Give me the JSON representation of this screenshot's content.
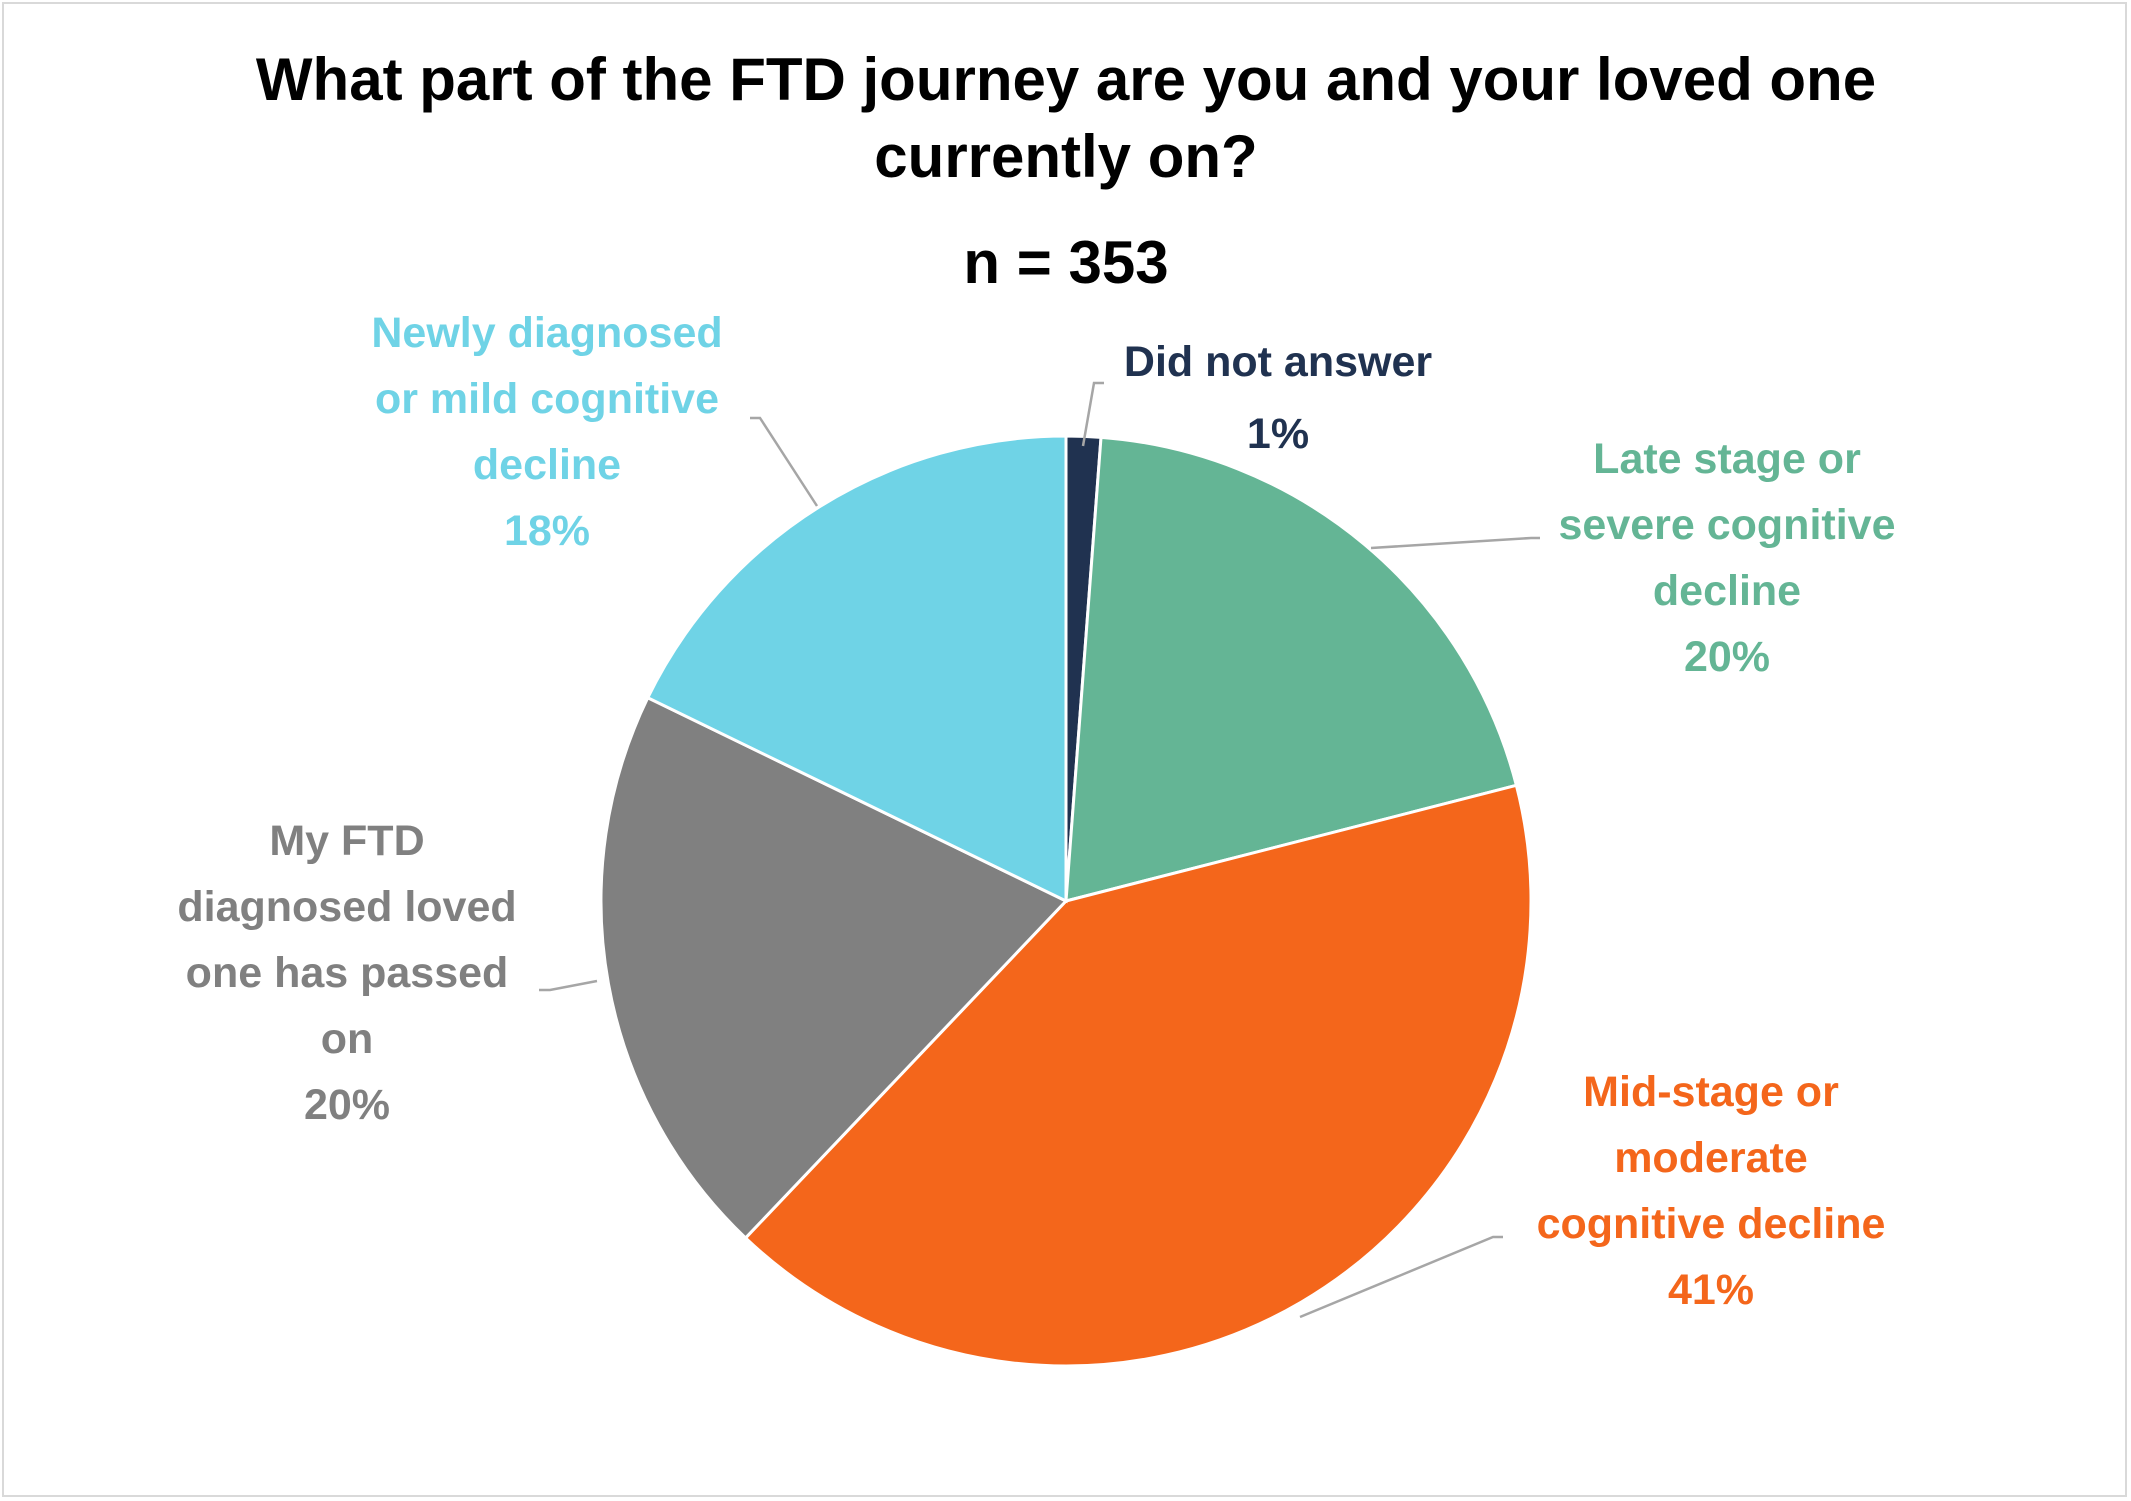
{
  "chart_data": {
    "type": "pie",
    "title": "What part of the FTD journey are you and your loved one currently on?",
    "title_lines": [
      "What part of the FTD journey are you and your loved one",
      "currently on?",
      "n = 353"
    ],
    "subtitle": "n = 353",
    "slices": [
      {
        "name": "Did not answer",
        "label_lines": [
          "Did not answer"
        ],
        "percent_label": "1%",
        "value": 1.2,
        "color": "#203250"
      },
      {
        "name": "Late stage or severe cognitive decline",
        "label_lines": [
          "Late stage or",
          "severe cognitive",
          "decline"
        ],
        "percent_label": "20%",
        "value": 19.8,
        "color": "#64b595"
      },
      {
        "name": "Mid-stage or moderate cognitive decline",
        "label_lines": [
          "Mid-stage or",
          "moderate",
          "cognitive decline"
        ],
        "percent_label": "41%",
        "value": 41.1,
        "color": "#f4661b"
      },
      {
        "name": "My FTD diagnosed loved one has passed on",
        "label_lines": [
          "My FTD",
          "diagnosed loved",
          "one has passed",
          "on"
        ],
        "percent_label": "20%",
        "value": 20.1,
        "color": "#808080"
      },
      {
        "name": "Newly diagnosed or mild cognitive decline",
        "label_lines": [
          "Newly diagnosed",
          "or mild cognitive",
          "decline"
        ],
        "percent_label": "18%",
        "value": 17.8,
        "color": "#6fd3e6"
      }
    ],
    "start_angle": "12 o'clock",
    "direction": "clockwise",
    "legend": "none (data labels)"
  }
}
